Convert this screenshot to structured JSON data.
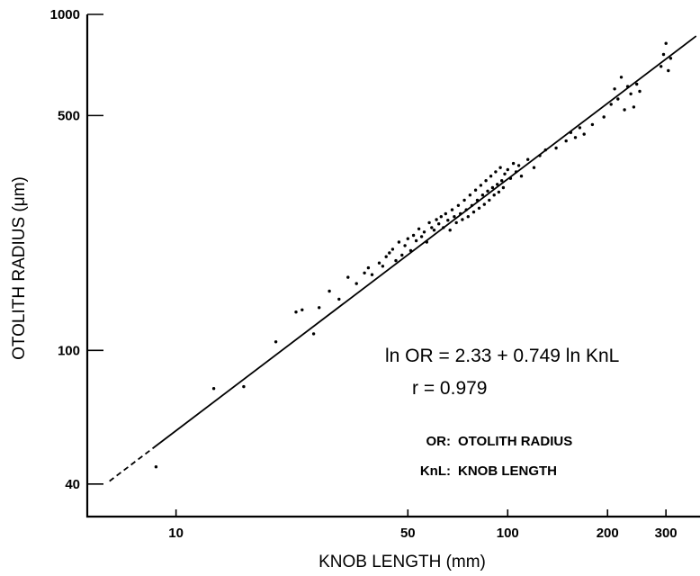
{
  "chart_data": {
    "type": "scatter",
    "title": "",
    "xlabel": "KNOB LENGTH (mm)",
    "ylabel": "OTOLITH RADIUS (μm)",
    "xscale": "log",
    "yscale": "log",
    "xlim": [
      5.4,
      380
    ],
    "ylim": [
      32,
      1000
    ],
    "x_ticks": [
      10,
      50,
      100,
      200,
      300
    ],
    "y_ticks": [
      40,
      100,
      500,
      1000
    ],
    "grid": false,
    "annotations": {
      "equation": "ln OR = 2.33 + 0.749 ln KnL",
      "r": "r = 0.979",
      "legend_or_key": "OR:",
      "legend_or_text": "OTOLITH RADIUS",
      "legend_knl_key": "KnL:",
      "legend_knl_text": "KNOB LENGTH"
    },
    "regression": {
      "intercept": 2.33,
      "slope": 0.749,
      "solid_x_range": [
        8.5,
        370
      ],
      "dashed_x_range": [
        6.3,
        8.5
      ]
    },
    "series": [
      {
        "points": [
          [
            8.7,
            45
          ],
          [
            13,
            77
          ],
          [
            16,
            78
          ],
          [
            20,
            106
          ],
          [
            23,
            130
          ],
          [
            24,
            132
          ],
          [
            26,
            112
          ],
          [
            27,
            134
          ],
          [
            29,
            150
          ],
          [
            31,
            142
          ],
          [
            33,
            165
          ],
          [
            35,
            158
          ],
          [
            37,
            170
          ],
          [
            38,
            176
          ],
          [
            39,
            168
          ],
          [
            41,
            182
          ],
          [
            42,
            178
          ],
          [
            43,
            190
          ],
          [
            44,
            195
          ],
          [
            45,
            200
          ],
          [
            46,
            185
          ],
          [
            47,
            210
          ],
          [
            48,
            192
          ],
          [
            49,
            205
          ],
          [
            50,
            215
          ],
          [
            51,
            198
          ],
          [
            52,
            220
          ],
          [
            53,
            212
          ],
          [
            54,
            230
          ],
          [
            55,
            218
          ],
          [
            56,
            225
          ],
          [
            57,
            210
          ],
          [
            58,
            240
          ],
          [
            59,
            232
          ],
          [
            60,
            228
          ],
          [
            61,
            245
          ],
          [
            62,
            238
          ],
          [
            63,
            250
          ],
          [
            64,
            232
          ],
          [
            65,
            255
          ],
          [
            66,
            244
          ],
          [
            67,
            228
          ],
          [
            68,
            262
          ],
          [
            69,
            250
          ],
          [
            70,
            240
          ],
          [
            71,
            270
          ],
          [
            72,
            255
          ],
          [
            73,
            245
          ],
          [
            74,
            280
          ],
          [
            75,
            262
          ],
          [
            76,
            250
          ],
          [
            77,
            290
          ],
          [
            78,
            270
          ],
          [
            79,
            258
          ],
          [
            80,
            300
          ],
          [
            81,
            280
          ],
          [
            82,
            265
          ],
          [
            83,
            310
          ],
          [
            84,
            290
          ],
          [
            85,
            272
          ],
          [
            86,
            320
          ],
          [
            87,
            298
          ],
          [
            88,
            280
          ],
          [
            89,
            330
          ],
          [
            90,
            305
          ],
          [
            91,
            290
          ],
          [
            92,
            340
          ],
          [
            93,
            312
          ],
          [
            94,
            296
          ],
          [
            95,
            350
          ],
          [
            96,
            320
          ],
          [
            97,
            305
          ],
          [
            98,
            335
          ],
          [
            100,
            345
          ],
          [
            102,
            325
          ],
          [
            104,
            360
          ],
          [
            106,
            340
          ],
          [
            108,
            355
          ],
          [
            110,
            330
          ],
          [
            115,
            370
          ],
          [
            120,
            350
          ],
          [
            125,
            380
          ],
          [
            130,
            395
          ],
          [
            140,
            400
          ],
          [
            150,
            420
          ],
          [
            155,
            445
          ],
          [
            160,
            430
          ],
          [
            165,
            460
          ],
          [
            170,
            440
          ],
          [
            180,
            470
          ],
          [
            195,
            495
          ],
          [
            205,
            540
          ],
          [
            210,
            600
          ],
          [
            215,
            560
          ],
          [
            220,
            650
          ],
          [
            225,
            520
          ],
          [
            230,
            610
          ],
          [
            235,
            580
          ],
          [
            240,
            530
          ],
          [
            245,
            620
          ],
          [
            250,
            590
          ],
          [
            290,
            700
          ],
          [
            295,
            760
          ],
          [
            300,
            820
          ],
          [
            305,
            680
          ],
          [
            310,
            740
          ]
        ]
      }
    ]
  }
}
